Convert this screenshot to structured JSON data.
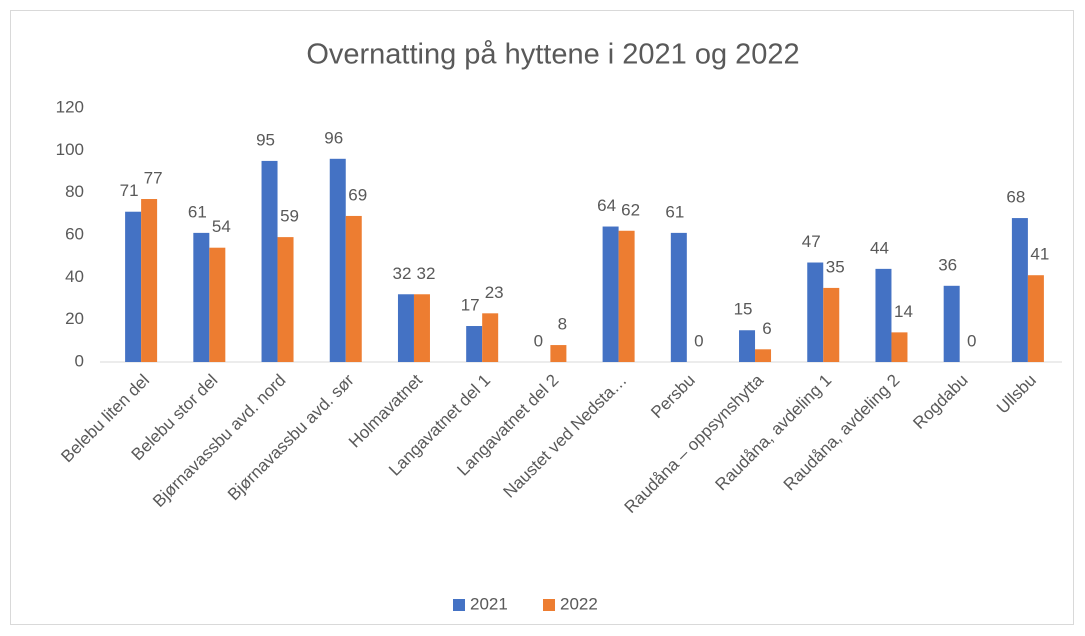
{
  "chart_data": {
    "type": "bar",
    "title": "Overnatting på hyttene i 2021 og 2022",
    "categories": [
      "Belebu liten del",
      "Belebu stor del",
      "Bjørnavassbu avd. nord",
      "Bjørnavassbu avd. sør",
      "Holmavatnet",
      "Langavatnet del 1",
      "Langavatnet del 2",
      "Naustet ved Nedsta…",
      "Persbu",
      "Raudåna – oppsynshytta",
      "Raudåna, avdeling 1",
      "Raudåna, avdeling 2",
      "Rogdabu",
      "Ullsbu"
    ],
    "series": [
      {
        "name": "2021",
        "color": "#4472c4",
        "values": [
          71,
          61,
          95,
          96,
          32,
          17,
          0,
          64,
          61,
          15,
          47,
          44,
          36,
          68
        ]
      },
      {
        "name": "2022",
        "color": "#ed7d31",
        "values": [
          77,
          54,
          59,
          69,
          32,
          23,
          8,
          62,
          0,
          6,
          35,
          14,
          0,
          41
        ]
      }
    ],
    "ylim": [
      0,
      120
    ],
    "yticks": [
      0,
      20,
      40,
      60,
      80,
      100,
      120
    ],
    "grid": false,
    "legend": "bottom"
  }
}
